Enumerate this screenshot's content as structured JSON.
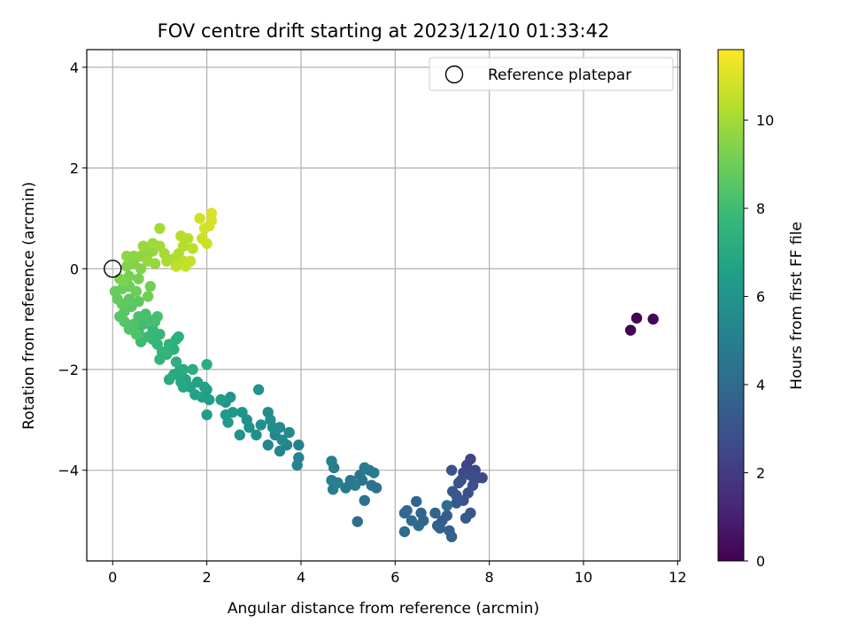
{
  "chart_data": {
    "type": "scatter",
    "title": "FOV centre drift starting at 2023/12/10 01:33:42",
    "xlabel": "Angular distance from reference (arcmin)",
    "ylabel": "Rotation from reference (arcmin)",
    "xlim": [
      -0.55,
      12.05
    ],
    "ylim": [
      -5.8,
      4.35
    ],
    "xticks": [
      0,
      2,
      4,
      6,
      8,
      10,
      12
    ],
    "yticks": [
      -4,
      -2,
      0,
      2,
      4
    ],
    "xtick_labels": [
      "0",
      "2",
      "4",
      "6",
      "8",
      "10",
      "12"
    ],
    "ytick_labels": [
      "−4",
      "−2",
      "0",
      "2",
      "4"
    ],
    "grid": true,
    "colormap": "viridis",
    "colorbar": {
      "label": "Hours from first FF file",
      "range": [
        0,
        11.6
      ],
      "ticks": [
        0,
        2,
        4,
        6,
        8,
        10
      ],
      "tick_labels": [
        "0",
        "2",
        "4",
        "6",
        "8",
        "10"
      ]
    },
    "legend": {
      "position": "top-right",
      "entries": [
        "Reference platepar"
      ]
    },
    "reference_point": {
      "x": 0,
      "y": 0
    },
    "points": [
      [
        11.0,
        -1.22,
        0.05
      ],
      [
        11.13,
        -0.98,
        0.1
      ],
      [
        11.48,
        -1.0,
        0.15
      ],
      [
        7.6,
        -3.78,
        2.3
      ],
      [
        7.52,
        -3.9,
        2.4
      ],
      [
        7.7,
        -4.0,
        2.5
      ],
      [
        7.45,
        -4.05,
        2.55
      ],
      [
        7.75,
        -4.15,
        2.6
      ],
      [
        7.85,
        -4.15,
        2.65
      ],
      [
        7.6,
        -4.1,
        2.7
      ],
      [
        7.4,
        -4.2,
        2.75
      ],
      [
        7.65,
        -4.3,
        2.8
      ],
      [
        7.55,
        -4.45,
        2.85
      ],
      [
        7.35,
        -4.25,
        2.9
      ],
      [
        7.2,
        -4.0,
        2.95
      ],
      [
        7.45,
        -4.6,
        3.0
      ],
      [
        7.3,
        -4.5,
        3.05
      ],
      [
        7.6,
        -4.85,
        3.1
      ],
      [
        7.5,
        -4.95,
        3.15
      ],
      [
        7.22,
        -4.42,
        3.2
      ],
      [
        7.3,
        -4.65,
        3.25
      ],
      [
        7.1,
        -4.9,
        3.35
      ],
      [
        7.0,
        -5.0,
        3.4
      ],
      [
        6.9,
        -5.1,
        3.45
      ],
      [
        7.15,
        -5.2,
        3.5
      ],
      [
        6.85,
        -4.85,
        3.55
      ],
      [
        7.2,
        -5.32,
        3.6
      ],
      [
        6.95,
        -5.15,
        3.65
      ],
      [
        6.55,
        -4.85,
        3.7
      ],
      [
        6.6,
        -5.0,
        3.75
      ],
      [
        6.45,
        -4.62,
        3.8
      ],
      [
        6.25,
        -4.8,
        3.85
      ],
      [
        6.2,
        -4.85,
        3.9
      ],
      [
        6.35,
        -5.0,
        3.95
      ],
      [
        6.5,
        -5.1,
        4.0
      ],
      [
        6.2,
        -5.22,
        4.05
      ],
      [
        7.1,
        -4.7,
        4.1
      ],
      [
        5.2,
        -5.02,
        4.2
      ],
      [
        5.35,
        -4.6,
        4.3
      ],
      [
        5.5,
        -4.3,
        4.35
      ],
      [
        5.3,
        -4.2,
        4.4
      ],
      [
        5.6,
        -4.35,
        4.45
      ],
      [
        5.45,
        -4.0,
        4.5
      ],
      [
        5.25,
        -4.1,
        4.55
      ],
      [
        5.05,
        -4.2,
        4.6
      ],
      [
        4.95,
        -4.35,
        4.65
      ],
      [
        5.15,
        -4.3,
        4.7
      ],
      [
        5.35,
        -3.95,
        4.75
      ],
      [
        5.55,
        -4.05,
        4.8
      ],
      [
        4.7,
        -3.95,
        4.85
      ],
      [
        4.65,
        -3.82,
        4.9
      ],
      [
        4.65,
        -4.2,
        4.95
      ],
      [
        4.68,
        -4.38,
        5.0
      ],
      [
        4.78,
        -4.25,
        5.05
      ],
      [
        3.95,
        -3.5,
        5.1
      ],
      [
        3.95,
        -3.75,
        5.15
      ],
      [
        3.92,
        -3.9,
        5.2
      ],
      [
        3.7,
        -3.5,
        5.25
      ],
      [
        3.55,
        -3.62,
        5.3
      ],
      [
        3.3,
        -3.5,
        5.35
      ],
      [
        3.45,
        -3.3,
        5.4
      ],
      [
        3.6,
        -3.4,
        5.45
      ],
      [
        3.75,
        -3.25,
        5.5
      ],
      [
        3.55,
        -3.15,
        5.55
      ],
      [
        3.4,
        -3.15,
        5.6
      ],
      [
        3.3,
        -2.85,
        5.65
      ],
      [
        3.35,
        -3.0,
        5.7
      ],
      [
        3.15,
        -3.1,
        5.75
      ],
      [
        3.05,
        -3.3,
        5.8
      ],
      [
        2.9,
        -3.15,
        5.85
      ],
      [
        2.85,
        -3.0,
        5.9
      ],
      [
        2.7,
        -3.3,
        5.95
      ],
      [
        3.1,
        -2.4,
        6.0
      ],
      [
        2.75,
        -2.85,
        6.05
      ],
      [
        2.5,
        -2.55,
        6.1
      ],
      [
        2.4,
        -2.65,
        6.15
      ],
      [
        2.45,
        -3.05,
        6.2
      ],
      [
        2.4,
        -2.9,
        6.25
      ],
      [
        2.55,
        -2.85,
        6.3
      ],
      [
        2.3,
        -2.6,
        6.35
      ],
      [
        2.0,
        -2.9,
        6.4
      ],
      [
        2.05,
        -2.6,
        6.45
      ],
      [
        2.0,
        -2.4,
        6.5
      ],
      [
        1.9,
        -2.55,
        6.55
      ],
      [
        1.95,
        -2.35,
        6.6
      ],
      [
        1.8,
        -2.25,
        6.65
      ],
      [
        1.75,
        -2.5,
        6.7
      ],
      [
        1.65,
        -2.35,
        6.75
      ],
      [
        1.55,
        -2.2,
        6.8
      ],
      [
        1.5,
        -2.35,
        6.85
      ],
      [
        1.45,
        -2.25,
        6.9
      ],
      [
        1.4,
        -2.05,
        6.95
      ],
      [
        1.3,
        -2.1,
        7.0
      ],
      [
        1.2,
        -2.2,
        7.05
      ],
      [
        1.5,
        -2.0,
        7.1
      ],
      [
        1.7,
        -2.0,
        7.15
      ],
      [
        2.0,
        -1.9,
        7.2
      ],
      [
        1.35,
        -1.85,
        7.25
      ],
      [
        1.3,
        -1.6,
        7.3
      ],
      [
        1.35,
        -1.4,
        7.35
      ],
      [
        1.4,
        -1.35,
        7.4
      ],
      [
        1.2,
        -1.5,
        7.45
      ],
      [
        1.15,
        -1.7,
        7.5
      ],
      [
        1.0,
        -1.8,
        7.55
      ],
      [
        1.05,
        -1.65,
        7.6
      ],
      [
        0.95,
        -1.5,
        7.65
      ],
      [
        0.85,
        -1.4,
        7.7
      ],
      [
        1.0,
        -1.3,
        7.75
      ],
      [
        0.85,
        -1.2,
        7.8
      ],
      [
        0.75,
        -1.35,
        7.85
      ],
      [
        0.6,
        -1.45,
        7.9
      ],
      [
        0.55,
        -1.25,
        7.95
      ],
      [
        0.65,
        -1.1,
        8.0
      ],
      [
        0.75,
        -1.0,
        8.05
      ],
      [
        0.9,
        -1.05,
        8.1
      ],
      [
        0.95,
        -0.95,
        8.15
      ],
      [
        0.7,
        -0.9,
        8.2
      ],
      [
        0.55,
        -0.95,
        8.25
      ],
      [
        0.45,
        -1.1,
        8.3
      ],
      [
        0.5,
        -1.3,
        8.35
      ],
      [
        0.35,
        -1.2,
        8.4
      ],
      [
        0.25,
        -1.05,
        8.45
      ],
      [
        0.15,
        -0.95,
        8.5
      ],
      [
        0.25,
        -0.85,
        8.55
      ],
      [
        0.4,
        -0.75,
        8.6
      ],
      [
        0.55,
        -0.65,
        8.65
      ],
      [
        0.35,
        -0.6,
        8.7
      ],
      [
        0.2,
        -0.7,
        8.75
      ],
      [
        0.1,
        -0.6,
        8.8
      ],
      [
        0.05,
        -0.45,
        8.85
      ],
      [
        0.2,
        -0.4,
        8.9
      ],
      [
        0.35,
        -0.35,
        8.95
      ],
      [
        0.5,
        -0.45,
        9.0
      ],
      [
        0.75,
        -0.55,
        9.05
      ],
      [
        0.8,
        -0.35,
        9.1
      ],
      [
        0.55,
        -0.2,
        9.15
      ],
      [
        0.35,
        -0.15,
        9.2
      ],
      [
        0.25,
        -0.25,
        9.25
      ],
      [
        0.15,
        -0.2,
        9.3
      ],
      [
        0.3,
        0.05,
        9.35
      ],
      [
        0.45,
        0.1,
        9.4
      ],
      [
        0.6,
        0.0,
        9.45
      ],
      [
        0.45,
        0.25,
        9.5
      ],
      [
        0.3,
        0.25,
        9.55
      ],
      [
        0.6,
        0.25,
        9.6
      ],
      [
        0.75,
        0.3,
        9.65
      ],
      [
        0.85,
        0.35,
        9.7
      ],
      [
        0.9,
        0.1,
        9.75
      ],
      [
        0.75,
        0.15,
        9.8
      ],
      [
        0.65,
        0.45,
        9.85
      ],
      [
        0.85,
        0.5,
        9.9
      ],
      [
        1.0,
        0.45,
        9.95
      ],
      [
        1.0,
        0.8,
        10.0
      ],
      [
        1.1,
        0.3,
        10.05
      ],
      [
        1.15,
        0.15,
        10.1
      ],
      [
        1.3,
        0.2,
        10.15
      ],
      [
        1.4,
        0.3,
        10.2
      ],
      [
        1.5,
        0.45,
        10.25
      ],
      [
        1.45,
        0.65,
        10.3
      ],
      [
        1.6,
        0.6,
        10.35
      ],
      [
        1.7,
        0.4,
        10.4
      ],
      [
        1.5,
        0.15,
        10.45
      ],
      [
        1.35,
        0.05,
        10.5
      ],
      [
        1.55,
        0.05,
        10.55
      ],
      [
        1.65,
        0.15,
        10.6
      ],
      [
        1.9,
        0.6,
        10.65
      ],
      [
        2.0,
        0.5,
        10.7
      ],
      [
        2.05,
        0.85,
        10.75
      ],
      [
        1.85,
        1.0,
        10.8
      ],
      [
        1.95,
        0.8,
        10.85
      ],
      [
        2.1,
        0.95,
        10.9
      ],
      [
        2.1,
        1.1,
        10.95
      ]
    ]
  },
  "fills_from_second_half": "generated"
}
